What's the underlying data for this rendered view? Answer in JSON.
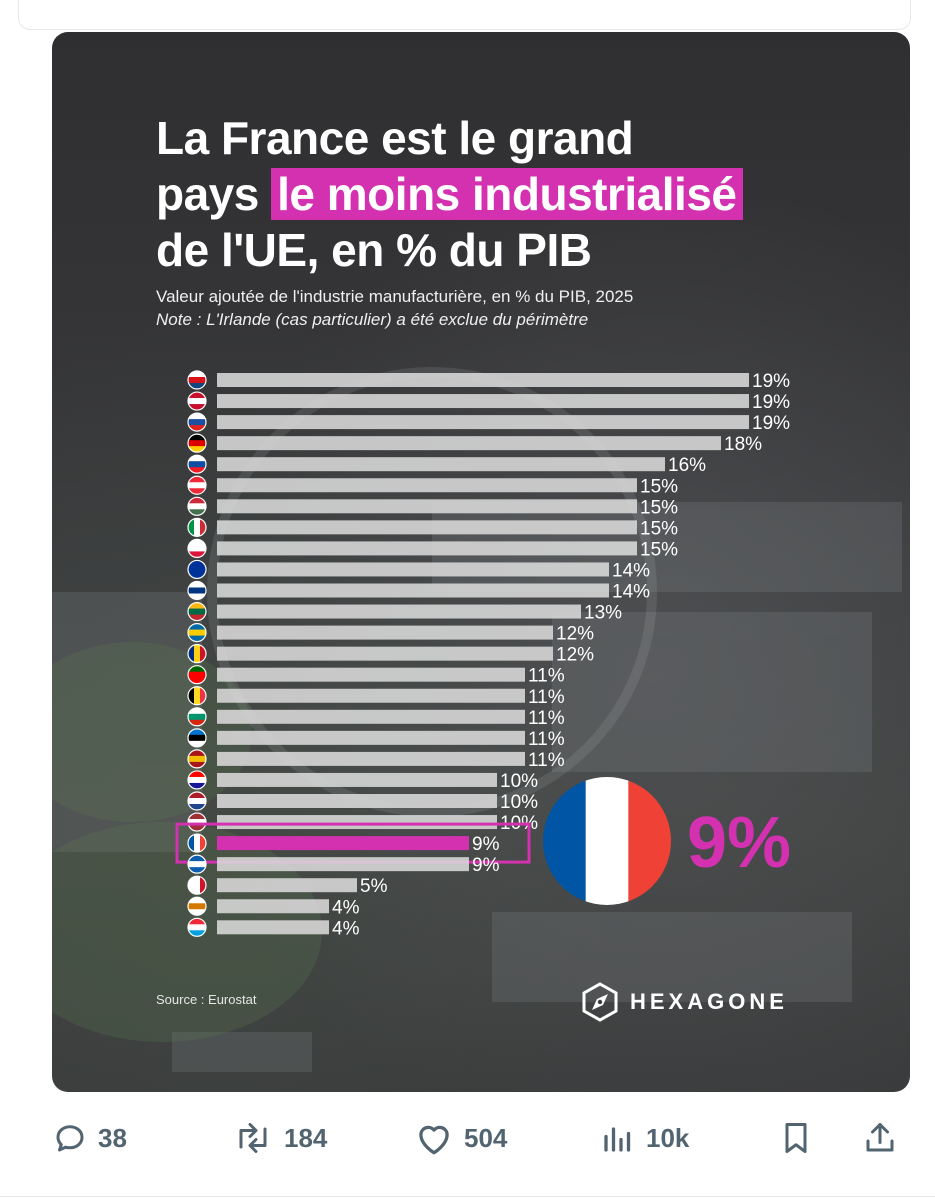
{
  "post": {
    "actions": {
      "replies": "38",
      "reposts": "184",
      "likes": "504",
      "views": "10k"
    }
  },
  "infographic": {
    "title_part1": "La France",
    "title_part2": " est le grand",
    "title_part3": "pays ",
    "title_highlight": "le moins industrialisé",
    "title_part4": "de l'UE, en % du PIB",
    "subtitle": "Valeur ajoutée de l'industrie manufacturière, en % du PIB, 2025",
    "note": "Note : L'Irlande (cas particulier) a été exclue du périmètre",
    "source": "Source : Eurostat",
    "brand": "HEXAGONE",
    "callout_value": "9%",
    "colors": {
      "highlight": "#d431b0",
      "bar": "#d9d9d9",
      "text": "#ffffff"
    }
  },
  "chart_data": {
    "type": "bar",
    "orientation": "horizontal",
    "categories": [
      "Czechia",
      "Denmark",
      "Slovenia",
      "Germany",
      "Slovakia",
      "Austria",
      "Hungary",
      "Italy",
      "Poland",
      "EU",
      "Finland",
      "Lithuania",
      "Sweden",
      "Romania",
      "Portugal",
      "Belgium",
      "Bulgaria",
      "Estonia",
      "Spain",
      "Croatia",
      "Netherlands",
      "Latvia",
      "France",
      "Greece",
      "Malta",
      "Cyprus",
      "Luxembourg"
    ],
    "values": [
      19,
      19,
      19,
      18,
      16,
      15,
      15,
      15,
      15,
      14,
      14,
      13,
      12,
      12,
      11,
      11,
      11,
      11,
      11,
      10,
      10,
      10,
      9,
      9,
      5,
      4,
      4
    ],
    "labels": [
      "19%",
      "19%",
      "19%",
      "18%",
      "16%",
      "15%",
      "15%",
      "15%",
      "15%",
      "14%",
      "14%",
      "13%",
      "12%",
      "12%",
      "11%",
      "11%",
      "11%",
      "11%",
      "11%",
      "10%",
      "10%",
      "10%",
      "9%",
      "9%",
      "5%",
      "4%",
      "4%"
    ],
    "highlight_category": "France",
    "unit": "% du PIB",
    "grid": false,
    "legend": "none"
  }
}
